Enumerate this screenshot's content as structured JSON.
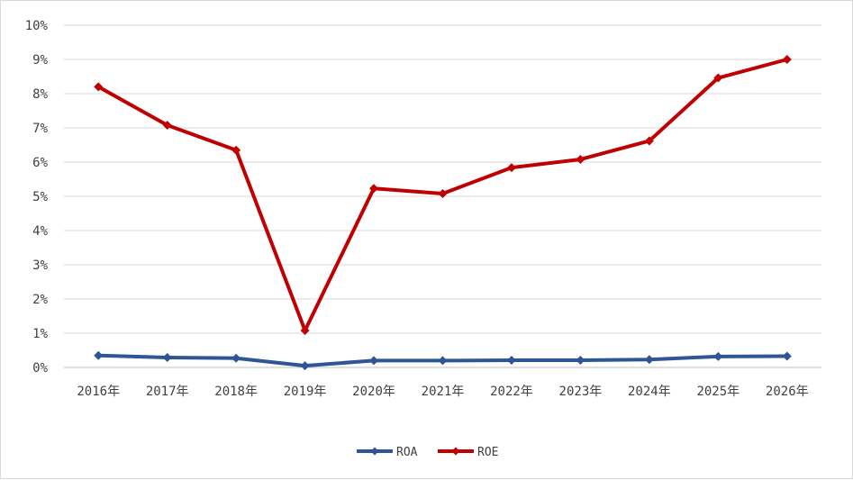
{
  "chart_data": {
    "type": "line",
    "title": "",
    "xlabel": "",
    "ylabel": "",
    "categories": [
      "2016年",
      "2017年",
      "2018年",
      "2019年",
      "2020年",
      "2021年",
      "2022年",
      "2023年",
      "2024年",
      "2025年",
      "2026年"
    ],
    "ylim": [
      0,
      10
    ],
    "yticks": [
      0,
      1,
      2,
      3,
      4,
      5,
      6,
      7,
      8,
      9,
      10
    ],
    "ytick_labels": [
      "0%",
      "1%",
      "2%",
      "3%",
      "4%",
      "5%",
      "6%",
      "7%",
      "8%",
      "9%",
      "10%"
    ],
    "grid": true,
    "legend_position": "bottom",
    "series": [
      {
        "name": "ROA",
        "color": "#2f5597",
        "marker": "diamond",
        "values": [
          0.35,
          0.29,
          0.27,
          0.05,
          0.2,
          0.2,
          0.21,
          0.21,
          0.23,
          0.32,
          0.33
        ]
      },
      {
        "name": "ROE",
        "color": "#c00000",
        "marker": "diamond",
        "values": [
          8.2,
          7.08,
          6.35,
          1.08,
          5.23,
          5.08,
          5.84,
          6.08,
          6.62,
          8.46,
          9.0
        ]
      }
    ]
  }
}
